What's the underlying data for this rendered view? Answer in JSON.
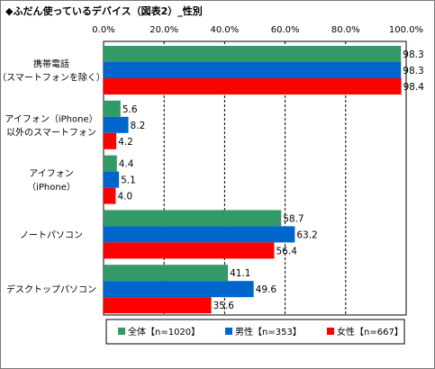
{
  "title": "◆ふだん使っているデバイス（図表2）_性別",
  "chart_data": {
    "type": "bar",
    "orientation": "horizontal",
    "title": "◆ふだん使っているデバイス（図表2）_性別",
    "xlim": [
      0,
      100
    ],
    "x_ticks": [
      "0.0%",
      "20.0%",
      "40.0%",
      "60.0%",
      "80.0%",
      "100.0%"
    ],
    "grid": "vertical dashed",
    "legend_position": "bottom",
    "categories": [
      [
        "携帯電話",
        "（スマートフォンを除く）"
      ],
      [
        "アイフォン（iPhone）",
        "以外のスマートフォン"
      ],
      [
        "アイフォン",
        "（iPhone）"
      ],
      [
        "ノートパソコン"
      ],
      [
        "デスクトップパソコン"
      ]
    ],
    "series": [
      {
        "name": "全体【n=1020】",
        "color": "#339966",
        "values": [
          98.3,
          5.6,
          4.4,
          58.7,
          41.1
        ]
      },
      {
        "name": "男性【n=353】",
        "color": "#0066cc",
        "values": [
          98.3,
          8.2,
          5.1,
          63.2,
          49.6
        ]
      },
      {
        "name": "女性【n=667】",
        "color": "#ff0000",
        "values": [
          98.4,
          4.2,
          4.0,
          56.4,
          35.6
        ]
      }
    ]
  }
}
